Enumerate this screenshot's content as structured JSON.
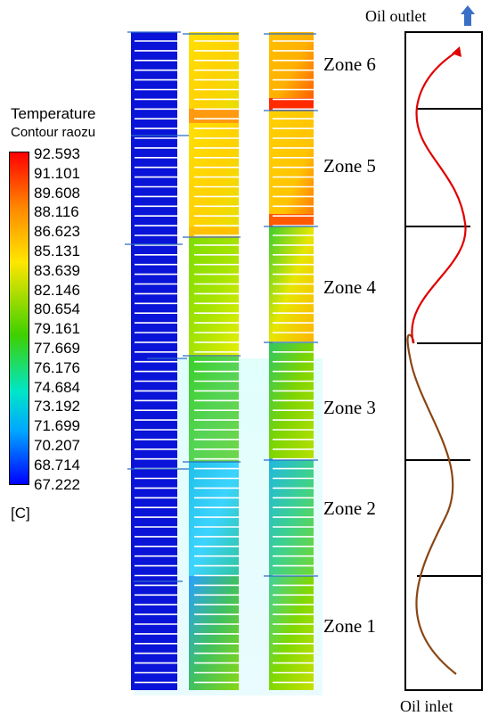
{
  "legend": {
    "title": "Temperature",
    "subtitle": "Contour raozu",
    "unit": "[C]",
    "values": [
      "92.593",
      "91.101",
      "89.608",
      "88.116",
      "86.623",
      "85.131",
      "83.639",
      "82.146",
      "80.654",
      "79.161",
      "77.669",
      "76.176",
      "74.684",
      "73.192",
      "71.699",
      "70.207",
      "68.714",
      "67.222"
    ]
  },
  "zones": [
    "Zone 6",
    "Zone 5",
    "Zone 4",
    "Zone 3",
    "Zone 2",
    "Zone 1"
  ],
  "flow": {
    "outlet": "Oil outlet",
    "inlet": "Oil inlet"
  },
  "colors": {
    "cold": "#0a14d8",
    "flow_upper": "#e00000",
    "flow_lower": "#8b4513",
    "outlet_arrow": "#3a6fc6"
  }
}
